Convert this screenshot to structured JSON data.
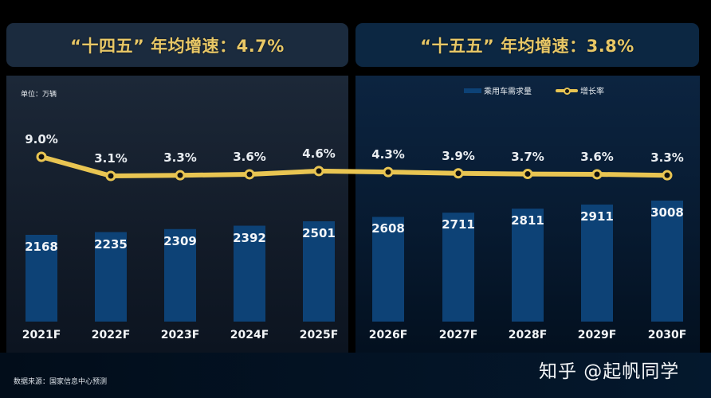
{
  "header": {
    "left_title": "“十四五” 年均增速：4.7%",
    "right_title": "“十五五” 年均增速：3.8%"
  },
  "unit_label": "单位：万辆",
  "legend": {
    "bar_series": "乘用车需求量",
    "line_series": "增长率"
  },
  "source": "数据来源：国家信息中心预测",
  "watermark": "知乎 @起帆同学",
  "colors": {
    "bar": "#0d4276",
    "line": "#e9c552",
    "title_text": "#e8c766",
    "marker_fill": "#111111"
  },
  "chart_data": {
    "type": "bar",
    "title": "",
    "xlabel": "",
    "ylabel": "单位：万辆",
    "categories": [
      "2021F",
      "2022F",
      "2023F",
      "2024F",
      "2025F",
      "2026F",
      "2027F",
      "2028F",
      "2029F",
      "2030F"
    ],
    "series": [
      {
        "name": "乘用车需求量",
        "type": "bar",
        "unit": "万辆",
        "values": [
          2168,
          2235,
          2309,
          2392,
          2501,
          2608,
          2711,
          2811,
          2911,
          3008
        ],
        "labels": [
          "2168",
          "2235",
          "2309",
          "2392",
          "2501",
          "2608",
          "2711",
          "2811",
          "2911",
          "3008"
        ]
      },
      {
        "name": "增长率",
        "type": "line",
        "unit": "%",
        "values": [
          9.0,
          3.1,
          3.3,
          3.6,
          4.6,
          4.3,
          3.9,
          3.7,
          3.6,
          3.3
        ],
        "labels": [
          "9.0%",
          "3.1%",
          "3.3%",
          "3.6%",
          "4.6%",
          "4.3%",
          "3.9%",
          "3.7%",
          "3.6%",
          "3.3%"
        ]
      }
    ],
    "annotations": [
      {
        "period": "十四五",
        "years": "2021F-2025F",
        "avg_growth": "4.7%"
      },
      {
        "period": "十五五",
        "years": "2026F-2030F",
        "avg_growth": "3.8%"
      }
    ],
    "legend_position": "top-right",
    "grid": false
  }
}
